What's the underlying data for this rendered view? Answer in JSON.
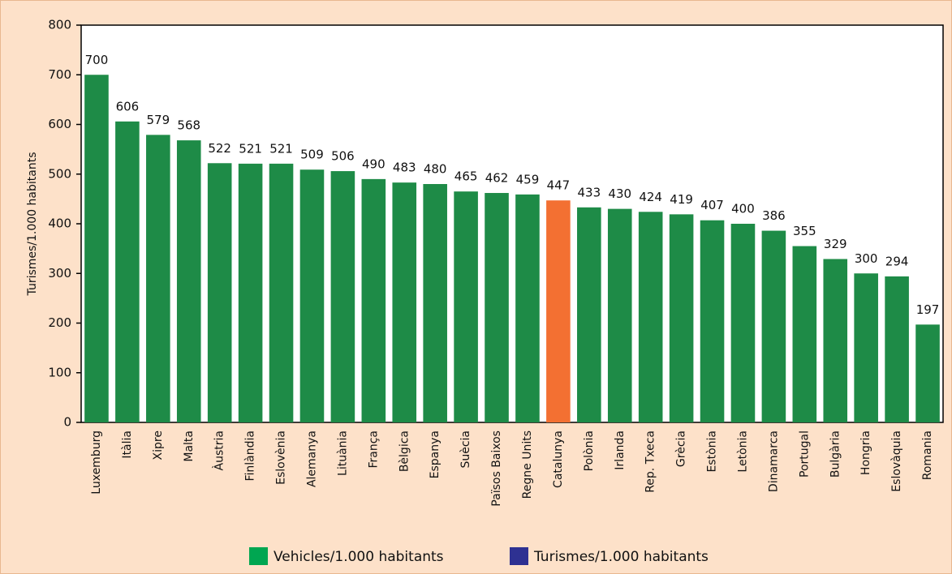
{
  "chart_data": {
    "type": "bar",
    "y_label": "Turismes/1.000 habitants",
    "categories": [
      "Luxemburg",
      "Itàlia",
      "Xipre",
      "Malta",
      "Àustria",
      "Finlàndia",
      "Eslovènia",
      "Alemanya",
      "Lituània",
      "França",
      "Bèlgica",
      "Espanya",
      "Suècia",
      "Països Baixos",
      "Regne Units",
      "Catalunya",
      "Polònia",
      "Irlanda",
      "Rep. Txeca",
      "Grècia",
      "Estònia",
      "Letònia",
      "Dinamarca",
      "Portugal",
      "Bulgària",
      "Hongria",
      "Eslovàquia",
      "Romania"
    ],
    "values": [
      700,
      606,
      579,
      568,
      522,
      521,
      521,
      509,
      506,
      490,
      483,
      480,
      465,
      462,
      459,
      447,
      433,
      430,
      424,
      419,
      407,
      400,
      386,
      355,
      329,
      300,
      294,
      197
    ],
    "colors": [
      "#1e8b47",
      "#1e8b47",
      "#1e8b47",
      "#1e8b47",
      "#1e8b47",
      "#1e8b47",
      "#1e8b47",
      "#1e8b47",
      "#1e8b47",
      "#1e8b47",
      "#1e8b47",
      "#1e8b47",
      "#1e8b47",
      "#1e8b47",
      "#1e8b47",
      "#f37032",
      "#1e8b47",
      "#1e8b47",
      "#1e8b47",
      "#1e8b47",
      "#1e8b47",
      "#1e8b47",
      "#1e8b47",
      "#1e8b47",
      "#1e8b47",
      "#1e8b47",
      "#1e8b47",
      "#1e8b47"
    ],
    "ylim": [
      0,
      800
    ],
    "yticks": [
      0,
      100,
      200,
      300,
      400,
      500,
      600,
      700,
      800
    ],
    "legend": [
      {
        "name": "Vehicles/1.000 habitants",
        "color": "#00a651"
      },
      {
        "name": "Turismes/1.000 habitants",
        "color": "#2e3192"
      }
    ]
  }
}
